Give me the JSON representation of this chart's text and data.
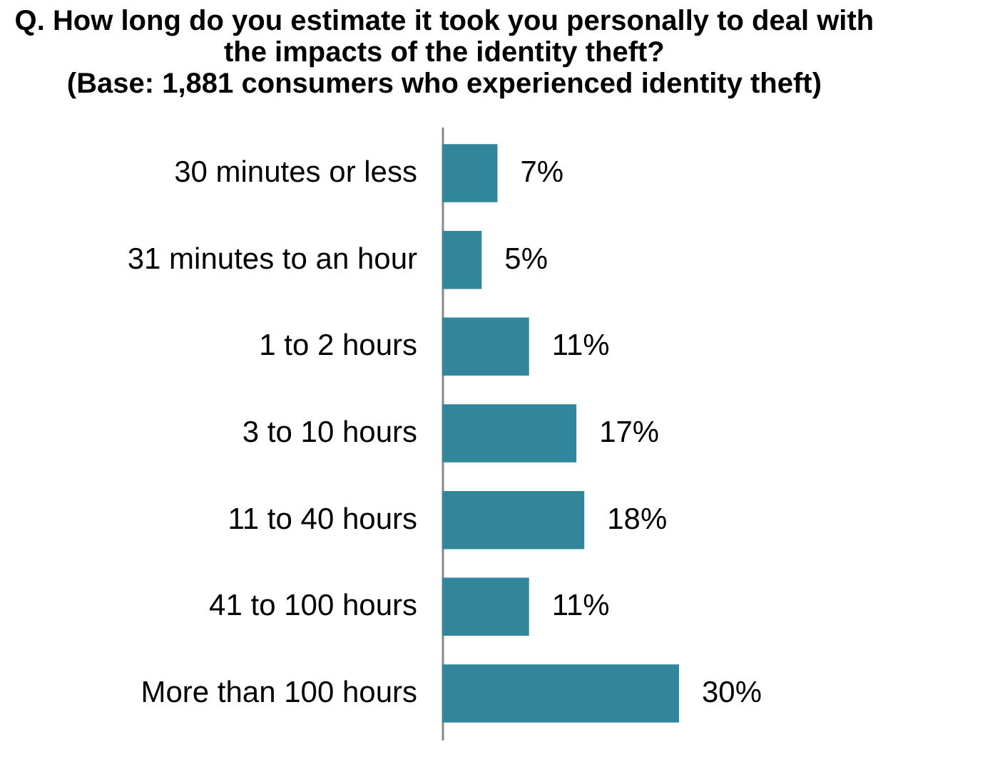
{
  "chart_data": {
    "type": "bar",
    "orientation": "horizontal",
    "title": [
      "Q. How long do you estimate it took you personally to deal with",
      "the impacts of the identity theft?",
      "(Base: 1,881 consumers who experienced identity theft)"
    ],
    "categories": [
      "30 minutes or less",
      "31 minutes to an hour",
      "1 to 2 hours",
      "3 to 10 hours",
      "11 to 40 hours",
      "41 to 100 hours",
      "More than 100 hours"
    ],
    "values": [
      7,
      5,
      11,
      17,
      18,
      11,
      30
    ],
    "value_labels": [
      "7%",
      "5%",
      "11%",
      "17%",
      "18%",
      "11%",
      "30%"
    ],
    "color": "#31869b",
    "tick_labels": "y",
    "grid": false
  }
}
